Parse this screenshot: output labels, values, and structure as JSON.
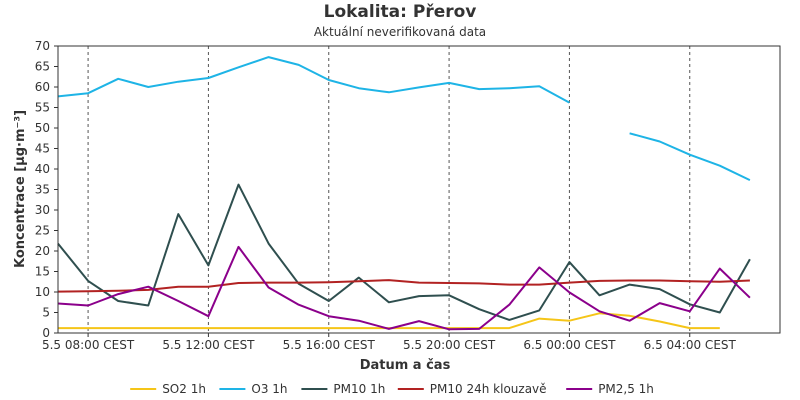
{
  "chart_data": {
    "type": "line",
    "title": "Lokalita: Přerov",
    "subtitle": "Aktuální neverifikovaná data",
    "xlabel": "Datum a čas",
    "ylabel": "Koncentrace [µg·m⁻³]",
    "ylim": [
      0,
      70
    ],
    "yticks": [
      0,
      5,
      10,
      15,
      20,
      25,
      30,
      35,
      40,
      45,
      50,
      55,
      60,
      65,
      70
    ],
    "xlim": [
      "5.5 07:00",
      "6.5 07:00"
    ],
    "x": [
      "5.5 07:00",
      "5.5 08:00",
      "5.5 09:00",
      "5.5 10:00",
      "5.5 11:00",
      "5.5 12:00",
      "5.5 13:00",
      "5.5 14:00",
      "5.5 15:00",
      "5.5 16:00",
      "5.5 17:00",
      "5.5 18:00",
      "5.5 19:00",
      "5.5 20:00",
      "5.5 21:00",
      "5.5 22:00",
      "5.5 23:00",
      "6.5 00:00",
      "6.5 01:00",
      "6.5 02:00",
      "6.5 03:00",
      "6.5 04:00",
      "6.5 05:00",
      "6.5 06:00"
    ],
    "xticks": [
      {
        "at": "5.5 08:00",
        "label": "5.5 08:00 CEST"
      },
      {
        "at": "5.5 12:00",
        "label": "5.5 12:00 CEST"
      },
      {
        "at": "5.5 16:00",
        "label": "5.5 16:00 CEST"
      },
      {
        "at": "5.5 20:00",
        "label": "5.5 20:00 CEST"
      },
      {
        "at": "6.5 00:00",
        "label": "6.5 00:00 CEST"
      },
      {
        "at": "6.5 04:00",
        "label": "6.5 04:00 CEST"
      }
    ],
    "grid": {
      "vertical": true,
      "style": "dashed"
    },
    "legend": "bottom",
    "series": [
      {
        "name": "SO2 1h",
        "color": "#f5c518",
        "values": [
          1.2,
          1.2,
          1.2,
          1.2,
          1.2,
          1.2,
          1.2,
          1.2,
          1.2,
          1.2,
          1.2,
          1.2,
          1.2,
          1.2,
          1.2,
          1.2,
          3.5,
          3.0,
          4.8,
          4.2,
          2.8,
          1.2,
          1.2,
          null
        ]
      },
      {
        "name": "O3 1h",
        "color": "#1eb4e6",
        "values": [
          57.7,
          58.5,
          62.0,
          60.0,
          61.3,
          62.2,
          64.8,
          67.3,
          65.4,
          61.7,
          59.7,
          58.7,
          59.9,
          61.0,
          59.5,
          59.7,
          60.2,
          56.2,
          null,
          48.7,
          46.7,
          43.5,
          40.8,
          37.3
        ]
      },
      {
        "name": "PM10 1h",
        "color": "#2f4f4f",
        "values": [
          21.8,
          12.7,
          7.8,
          6.7,
          29.0,
          16.5,
          36.2,
          21.8,
          12.0,
          7.8,
          13.5,
          7.5,
          9.0,
          9.2,
          5.8,
          3.2,
          5.5,
          17.3,
          9.2,
          11.8,
          10.7,
          7.0,
          5.0,
          18.0
        ]
      },
      {
        "name": "PM10 24h klouzavě",
        "color": "#b22222",
        "values": [
          10.1,
          10.2,
          10.3,
          10.5,
          11.3,
          11.3,
          12.2,
          12.3,
          12.3,
          12.4,
          12.6,
          12.9,
          12.3,
          12.2,
          12.1,
          11.8,
          11.8,
          12.3,
          12.7,
          12.8,
          12.8,
          12.6,
          12.5,
          12.8
        ]
      },
      {
        "name": "PM2,5 1h",
        "color": "#8b008b",
        "values": [
          7.2,
          6.7,
          9.5,
          11.3,
          7.8,
          4.1,
          21.0,
          11.1,
          6.9,
          4.1,
          3.0,
          1.0,
          2.9,
          0.9,
          1.0,
          6.9,
          16.0,
          9.9,
          5.3,
          3.0,
          7.3,
          5.3,
          15.7,
          8.6
        ]
      }
    ]
  }
}
